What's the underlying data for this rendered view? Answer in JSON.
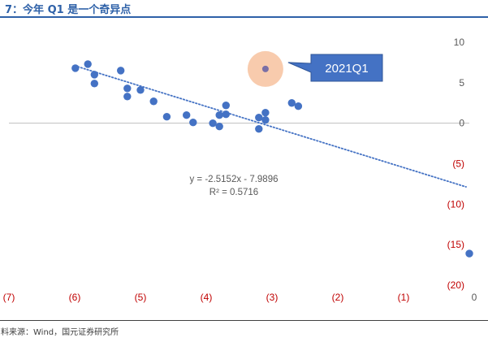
{
  "header": {
    "title": "7：今年 Q1 是一个奇异点",
    "source": "料来源：Wind，国元证券研究所"
  },
  "colors": {
    "title": "#2e61a8",
    "points": "#4472c4",
    "highlight_halo": "#f8cbad",
    "highlight_point": "#7a6fa6",
    "callout_fill": "#4472c4",
    "callout_stroke": "#2f5597",
    "negative_label": "#c00000",
    "positive_label": "#595959",
    "axis": "#bfbfbf"
  },
  "chart_data": {
    "type": "scatter",
    "title": "",
    "xlabel": "",
    "ylabel": "",
    "xlim": [
      -7,
      0
    ],
    "ylim": [
      -20,
      10
    ],
    "x_ticks": [
      {
        "value": -7,
        "label": "(7)"
      },
      {
        "value": -6,
        "label": "(6)"
      },
      {
        "value": -5,
        "label": "(5)"
      },
      {
        "value": -4,
        "label": "(4)"
      },
      {
        "value": -3,
        "label": "(3)"
      },
      {
        "value": -2,
        "label": "(2)"
      },
      {
        "value": -1,
        "label": "(1)"
      },
      {
        "value": 0,
        "label": "0"
      }
    ],
    "y_ticks": [
      {
        "value": 10,
        "label": "10"
      },
      {
        "value": 5,
        "label": "5"
      },
      {
        "value": 0,
        "label": "0"
      },
      {
        "value": -5,
        "label": "(5)"
      },
      {
        "value": -10,
        "label": "(10)"
      },
      {
        "value": -15,
        "label": "(15)"
      },
      {
        "value": -20,
        "label": "(20)"
      }
    ],
    "grid": false,
    "points": [
      {
        "x": -5.99,
        "y": 6.8
      },
      {
        "x": -5.8,
        "y": 7.3
      },
      {
        "x": -5.7,
        "y": 6.0
      },
      {
        "x": -5.7,
        "y": 4.9
      },
      {
        "x": -5.3,
        "y": 6.5
      },
      {
        "x": -5.2,
        "y": 4.3
      },
      {
        "x": -5.2,
        "y": 3.3
      },
      {
        "x": -5.0,
        "y": 4.1
      },
      {
        "x": -4.8,
        "y": 2.7
      },
      {
        "x": -4.6,
        "y": 0.8
      },
      {
        "x": -4.3,
        "y": 1.0
      },
      {
        "x": -4.2,
        "y": 0.1
      },
      {
        "x": -3.9,
        "y": 0.0
      },
      {
        "x": -3.8,
        "y": 1.0
      },
      {
        "x": -3.8,
        "y": -0.4
      },
      {
        "x": -3.7,
        "y": 2.2
      },
      {
        "x": -3.7,
        "y": 1.1
      },
      {
        "x": -3.2,
        "y": 0.7
      },
      {
        "x": -3.2,
        "y": -0.7
      },
      {
        "x": -3.1,
        "y": 1.3
      },
      {
        "x": -3.1,
        "y": 0.4
      },
      {
        "x": -2.7,
        "y": 2.5
      },
      {
        "x": -2.6,
        "y": 2.1
      },
      {
        "x": 0.0,
        "y": -16.1
      }
    ],
    "highlight": {
      "x": -3.1,
      "y": 6.7,
      "label": "2021Q1"
    },
    "trendline": {
      "type": "linear",
      "slope": -2.5152,
      "intercept": -7.9896,
      "equation": "y = -2.5152x - 7.9896",
      "r_squared": "R² = 0.5716"
    }
  }
}
